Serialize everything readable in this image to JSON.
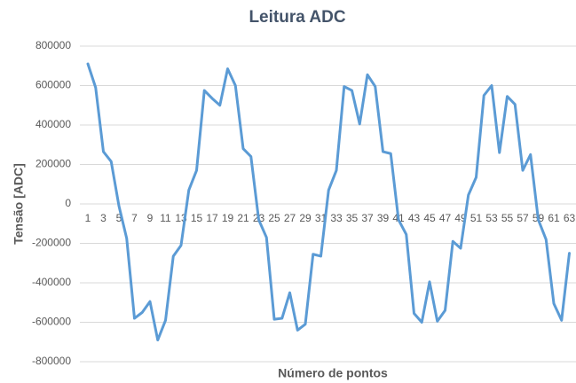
{
  "chart_data": {
    "type": "line",
    "title": "Leitura ADC",
    "x_label": "Número de pontos",
    "y_label": "Tensão [ADC]",
    "categories": [
      1,
      null,
      3,
      null,
      5,
      null,
      7,
      null,
      9,
      null,
      11,
      null,
      13,
      null,
      15,
      null,
      17,
      null,
      19,
      null,
      21,
      null,
      23,
      null,
      25,
      null,
      27,
      null,
      29,
      null,
      31,
      null,
      33,
      null,
      35,
      null,
      37,
      null,
      39,
      null,
      41,
      null,
      43,
      null,
      45,
      null,
      47,
      null,
      49,
      null,
      51,
      null,
      53,
      null,
      55,
      null,
      57,
      null,
      59,
      null,
      61,
      null,
      63
    ],
    "series": [
      {
        "name": "Leitura ADC",
        "color": "#5b9bd5",
        "values": [
          710000,
          590000,
          265000,
          215000,
          -10000,
          -175000,
          -580000,
          -550000,
          -495000,
          -690000,
          -590000,
          -265000,
          -210000,
          70000,
          170000,
          575000,
          535000,
          500000,
          685000,
          600000,
          280000,
          240000,
          -80000,
          -170000,
          -585000,
          -580000,
          -450000,
          -640000,
          -610000,
          -255000,
          -265000,
          70000,
          170000,
          595000,
          575000,
          405000,
          655000,
          595000,
          265000,
          255000,
          -80000,
          -155000,
          -555000,
          -600000,
          -395000,
          -595000,
          -540000,
          -190000,
          -225000,
          45000,
          135000,
          550000,
          600000,
          260000,
          545000,
          505000,
          170000,
          250000,
          -80000,
          -180000,
          -505000,
          -590000,
          -250000
        ]
      }
    ],
    "ylim": [
      -800000,
      800000
    ],
    "yticks": [
      -800000,
      -600000,
      -400000,
      -200000,
      0,
      200000,
      400000,
      600000,
      800000
    ],
    "grid": true
  }
}
